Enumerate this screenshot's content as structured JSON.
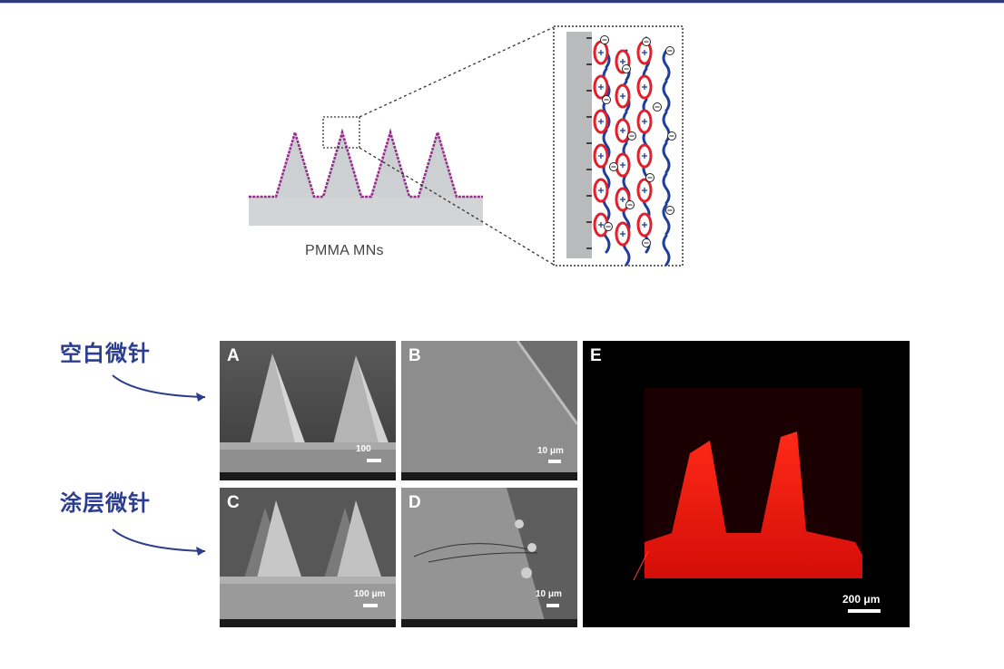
{
  "schematic": {
    "label": "PMMA MNs"
  },
  "side_labels": {
    "blank": "空白微针",
    "coated": "涂层微针"
  },
  "panels": {
    "a": {
      "letter": "A",
      "scale": "100"
    },
    "b": {
      "letter": "B",
      "scale": "10 μm"
    },
    "c": {
      "letter": "C",
      "scale": "100 μm"
    },
    "d": {
      "letter": "D",
      "scale": "10 μm"
    },
    "e": {
      "letter": "E",
      "scale": "200 μm"
    }
  },
  "colors": {
    "accent": "#2c3d8f",
    "coating": "#9b2a8f",
    "fluorescence": "#ff1a12"
  }
}
